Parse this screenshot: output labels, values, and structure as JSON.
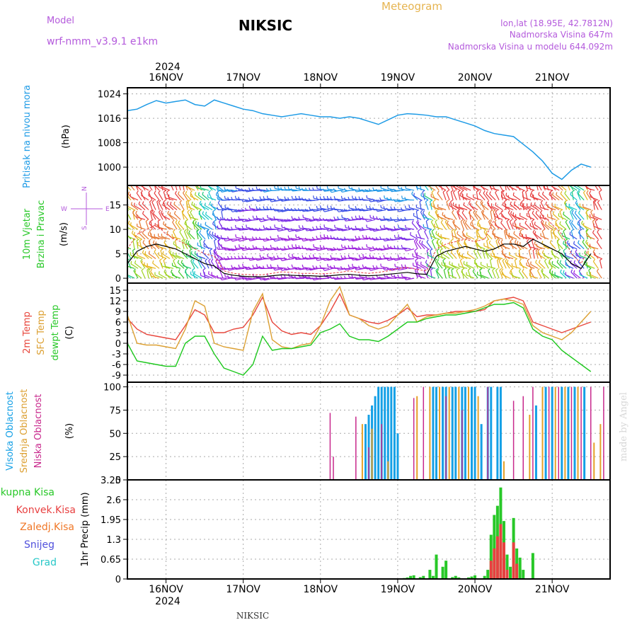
{
  "header": {
    "model_label": "Model",
    "model_value": "wrf-nmm_v3.9.1 e1km",
    "title": "NIKSIC",
    "meteogram": "Meteogram",
    "lonlat": "lon,lat (18.95E, 42.7812N)",
    "elevation": "Nadmorska Visina 647m",
    "model_elevation": "Nadmorska Visina u modelu 644.092m",
    "year_top": "2024",
    "year_bottom": "2024",
    "footer": "NIKSIC",
    "watermark": "made by Angel"
  },
  "days": [
    "16NOV",
    "17NOV",
    "18NOV",
    "19NOV",
    "20NOV",
    "21NOV"
  ],
  "colors": {
    "pressure": "#1e9be6",
    "temp2m": "#e8463c",
    "sfc": "#dca032",
    "dewpt": "#1ec81e",
    "high_cloud": "#14a0e6",
    "mid_cloud": "#e6a028",
    "low_cloud": "#c8288c",
    "precip_total": "#28c828",
    "precip_conv": "#e84040",
    "gust": "#e84040",
    "speed": "#000000"
  },
  "chart_data": [
    {
      "type": "line",
      "panel": "pressure",
      "ylabel_left": "Pritisak na nivou mora",
      "ylabel_unit": "(hPa)",
      "ylim": [
        994,
        1026
      ],
      "yticks": [
        "1024",
        "1016",
        "1008",
        "1000"
      ],
      "x_hours": [
        0,
        3,
        6,
        9,
        12,
        15,
        18,
        21,
        24,
        27,
        30,
        33,
        36,
        39,
        42,
        45,
        48,
        51,
        54,
        57,
        60,
        63,
        66,
        69,
        72,
        75,
        78,
        81,
        84,
        87,
        90,
        93,
        96,
        99,
        102,
        105,
        108,
        111,
        114,
        117,
        120,
        123,
        126,
        129,
        132,
        135,
        138,
        141,
        144
      ],
      "series": [
        {
          "values": [
            1018.5,
            1019,
            1020.5,
            1021.8,
            1021,
            1021.5,
            1022,
            1020.5,
            1020,
            1022,
            1021,
            1020,
            1019,
            1018.5,
            1017.5,
            1017,
            1016.5,
            1017,
            1017.5,
            1017,
            1016.5,
            1016.5,
            1016,
            1016.5,
            1016,
            1015,
            1014,
            1015.5,
            1017,
            1017.5,
            1017.3,
            1017,
            1016.5,
            1016.5,
            1015.5,
            1014.5,
            1013.5,
            1012,
            1011,
            1010.5,
            1010,
            1007.5,
            1005,
            1002,
            998,
            996,
            999,
            1001,
            1000
          ]
        }
      ]
    },
    {
      "type": "line",
      "panel": "wind",
      "ylabel_left": "10m Vjetar",
      "ylabel_left2": "Brzina i Pravac",
      "ylabel_unit": "(m/s)",
      "compass": {
        "n": "N",
        "s": "S",
        "e": "E",
        "w": "W"
      },
      "ylim": [
        -1,
        19
      ],
      "yticks": [
        "15",
        "10",
        "5",
        "0"
      ],
      "x_hours": [
        0,
        3,
        6,
        9,
        12,
        15,
        18,
        21,
        24,
        27,
        30,
        33,
        36,
        39,
        42,
        45,
        48,
        51,
        54,
        57,
        60,
        63,
        66,
        69,
        72,
        75,
        78,
        81,
        84,
        87,
        90,
        93,
        96,
        99,
        102,
        105,
        108,
        111,
        114,
        117,
        120,
        123,
        126,
        129,
        132,
        135,
        138,
        141,
        144
      ],
      "series": [
        {
          "name": "speed",
          "values": [
            3,
            5.5,
            6.5,
            7,
            6.5,
            6,
            5,
            4,
            3,
            2.5,
            1,
            0.6,
            0.4,
            0.3,
            0.3,
            0.5,
            0.7,
            0.6,
            0.5,
            0.5,
            0.4,
            0.5,
            0.7,
            0.8,
            0.6,
            0.5,
            0.6,
            0.8,
            1,
            1.2,
            0.9,
            0.8,
            4.5,
            5.5,
            6,
            6.5,
            6,
            5.5,
            6,
            7,
            7,
            6.5,
            8,
            7,
            6,
            5,
            3,
            2,
            5
          ]
        },
        {
          "name": "gust",
          "values": [
            6,
            9,
            10,
            11,
            9,
            8,
            7,
            6,
            5,
            4.5,
            1.5,
            1,
            0.8,
            0.7,
            0.7,
            1,
            1.3,
            1.2,
            1,
            1,
            0.9,
            1,
            1.2,
            1.5,
            1.2,
            1,
            1.2,
            1.5,
            2,
            2.2,
            1.8,
            1.5,
            6,
            7,
            7.5,
            8,
            7.5,
            8,
            12,
            14,
            15,
            14,
            15,
            13,
            11,
            9,
            5,
            3,
            7
          ]
        }
      ]
    },
    {
      "type": "line",
      "panel": "temperature",
      "ylabel_left": "2m Temp",
      "ylabel_left2": "SFC Temp",
      "ylabel_left3": "dewpt Temp",
      "ylabel_unit": "(C)",
      "ylim": [
        -11,
        17
      ],
      "yticks": [
        "15",
        "12",
        "9",
        "6",
        "3",
        "0",
        "-3",
        "-6",
        "-9"
      ],
      "x_hours": [
        0,
        3,
        6,
        9,
        12,
        15,
        18,
        21,
        24,
        27,
        30,
        33,
        36,
        39,
        42,
        45,
        48,
        51,
        54,
        57,
        60,
        63,
        66,
        69,
        72,
        75,
        78,
        81,
        84,
        87,
        90,
        93,
        96,
        99,
        102,
        105,
        108,
        111,
        114,
        117,
        120,
        123,
        126,
        129,
        132,
        135,
        138,
        141,
        144
      ],
      "series": [
        {
          "name": "2m Temp",
          "values": [
            7,
            4,
            2.5,
            2,
            1.5,
            1,
            5,
            9.5,
            8,
            3,
            3,
            4,
            4.5,
            8,
            13,
            6,
            3.5,
            2.5,
            3,
            2.5,
            5,
            9,
            14,
            8,
            7,
            6,
            5.5,
            6.5,
            8,
            10,
            7.5,
            8,
            8,
            8.5,
            9,
            9,
            9,
            9.5,
            12,
            12.5,
            13,
            12,
            6,
            5,
            4,
            3,
            4,
            5,
            6
          ]
        },
        {
          "name": "SFC Temp",
          "values": [
            8,
            0,
            -0.5,
            -0.5,
            -1,
            -1.5,
            4,
            12,
            10.5,
            0,
            -1,
            -1.5,
            -2,
            9,
            14,
            1,
            -1,
            -1.5,
            -0.5,
            0,
            5,
            12,
            16,
            8,
            7,
            5,
            4,
            5,
            8,
            11,
            6,
            7.5,
            8,
            8.5,
            8.5,
            9,
            9.5,
            10.5,
            12,
            12.5,
            12,
            11,
            5,
            3,
            2,
            1,
            3,
            6,
            9
          ]
        },
        {
          "name": "dewpt Temp",
          "values": [
            0,
            -5,
            -5.5,
            -6,
            -6.5,
            -6.5,
            0,
            2,
            2,
            -3,
            -7,
            -8,
            -9,
            -6,
            2,
            -2,
            -1.5,
            -1.5,
            -1,
            -0.5,
            3,
            4,
            5.5,
            2,
            1,
            1,
            0.5,
            2,
            4,
            6,
            6,
            7,
            7.5,
            8,
            8,
            8.5,
            9,
            10,
            11,
            11,
            11.5,
            10,
            4,
            2,
            1,
            -2,
            -4,
            -6,
            -8
          ]
        }
      ]
    },
    {
      "type": "bar",
      "panel": "clouds",
      "ylabel_left": "Visoka Oblacnost",
      "ylabel_left2": "Srednja Oblacnost",
      "ylabel_left3": "Niska Oblacnost",
      "ylabel_unit": "(%)",
      "ylim": [
        0,
        105
      ],
      "yticks": [
        "100",
        "75",
        "50",
        "25",
        "0"
      ],
      "series": [
        {
          "name": "Visoka Oblacnost",
          "x": [
            74,
            75,
            76,
            77,
            78,
            79,
            80,
            81,
            82,
            83,
            84,
            95,
            96,
            98,
            99,
            101,
            102,
            104,
            105,
            107,
            108,
            110,
            112,
            113,
            115,
            116,
            127,
            130,
            132,
            135,
            137,
            139,
            142
          ],
          "values": [
            60,
            70,
            80,
            90,
            100,
            100,
            100,
            100,
            100,
            100,
            50,
            100,
            100,
            100,
            100,
            100,
            100,
            100,
            100,
            100,
            100,
            60,
            100,
            100,
            100,
            100,
            80,
            100,
            100,
            100,
            100,
            100,
            100
          ]
        },
        {
          "name": "Srednja Oblacnost",
          "x": [
            73,
            76,
            81,
            90,
            94,
            97,
            100,
            103,
            106,
            109,
            117,
            125,
            129,
            133,
            136,
            140,
            145,
            147
          ],
          "values": [
            60,
            55,
            20,
            90,
            100,
            100,
            100,
            100,
            100,
            90,
            20,
            70,
            100,
            100,
            100,
            100,
            40,
            60
          ]
        },
        {
          "name": "Niska Oblacnost",
          "x": [
            63,
            64,
            71,
            75,
            79,
            89,
            92,
            99,
            104,
            112,
            120,
            123,
            126,
            131,
            134,
            138,
            141,
            144,
            148
          ],
          "values": [
            72,
            25,
            68,
            35,
            60,
            88,
            100,
            90,
            75,
            100,
            85,
            90,
            100,
            100,
            100,
            100,
            100,
            100,
            100
          ]
        }
      ]
    },
    {
      "type": "bar",
      "panel": "precipitation",
      "ylabel_unit": "1hr Precip (mm)",
      "legend": [
        "Ukupna Kisa",
        "Konvek.Kisa",
        "Zaledj.Kisa",
        "Snijeg",
        "Grad"
      ],
      "ylim": [
        0,
        3.25
      ],
      "yticks": [
        "3.25",
        "2.6",
        "1.95",
        "1.3",
        "0.65",
        "0"
      ],
      "series": [
        {
          "name": "Ukupna Kisa",
          "x": [
            86,
            87,
            88,
            89,
            91,
            92,
            94,
            95,
            96,
            98,
            99,
            101,
            102,
            103,
            106,
            107,
            108,
            111,
            112,
            113,
            114,
            115,
            116,
            117,
            118,
            119,
            120,
            121,
            122,
            123,
            126
          ],
          "values": [
            0.03,
            0.05,
            0.1,
            0.12,
            0.06,
            0.1,
            0.3,
            0.1,
            0.8,
            0.4,
            0.6,
            0.06,
            0.1,
            0.05,
            0.05,
            0.08,
            0.12,
            0.1,
            0.3,
            1.45,
            2.1,
            2.4,
            3.0,
            1.9,
            0.8,
            0.4,
            2.0,
            1.0,
            0.7,
            0.3,
            0.85
          ]
        },
        {
          "name": "Konvek.Kisa",
          "x": [
            113,
            114,
            115,
            116,
            117,
            118,
            120,
            121
          ],
          "values": [
            0.6,
            1.0,
            1.4,
            1.8,
            1.2,
            0.3,
            1.2,
            0.5
          ]
        }
      ]
    }
  ]
}
